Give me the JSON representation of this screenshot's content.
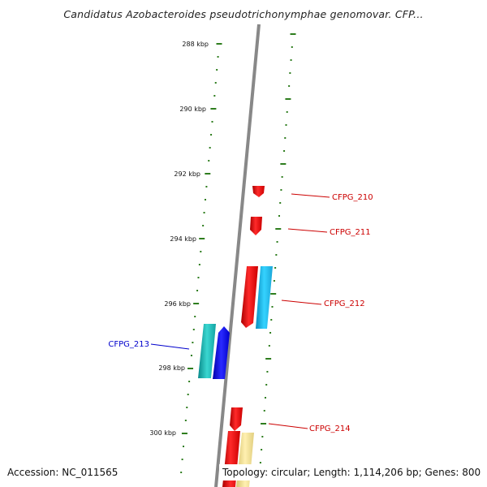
{
  "title": "Candidatus Azobacteroides pseudotrichonymphae genomovar. CFP...",
  "footer": {
    "accession": "Accession: NC_011565",
    "summary": "Topology: circular; Length: 1,114,206 bp; Genes: 800"
  },
  "kbp_labels": [
    "288 kbp",
    "290 kbp",
    "292 kbp",
    "294 kbp",
    "296 kbp",
    "298 kbp",
    "300 kbp"
  ],
  "genes": [
    {
      "label": "CFPG_210",
      "strand": "-",
      "label_side": "right",
      "color": "#cc0000"
    },
    {
      "label": "CFPG_211",
      "strand": "-",
      "label_side": "right",
      "color": "#cc0000"
    },
    {
      "label": "CFPG_212",
      "strand": "-",
      "label_side": "right",
      "color": "#cc0000"
    },
    {
      "label": "CFPG_213",
      "strand": "+",
      "label_side": "left",
      "color": "#0000cc"
    },
    {
      "label": "CFPG_214",
      "strand": "-",
      "label_side": "right",
      "color": "#cc0000"
    }
  ],
  "colors": {
    "backbone": "#888888",
    "tick": "#2e7d1e",
    "gene_red": "#ee1111",
    "gene_cyan": "#22bbee",
    "gene_teal": "#11aaaa",
    "gene_blue": "#1111ee",
    "gene_yellow": "#eedd88"
  }
}
